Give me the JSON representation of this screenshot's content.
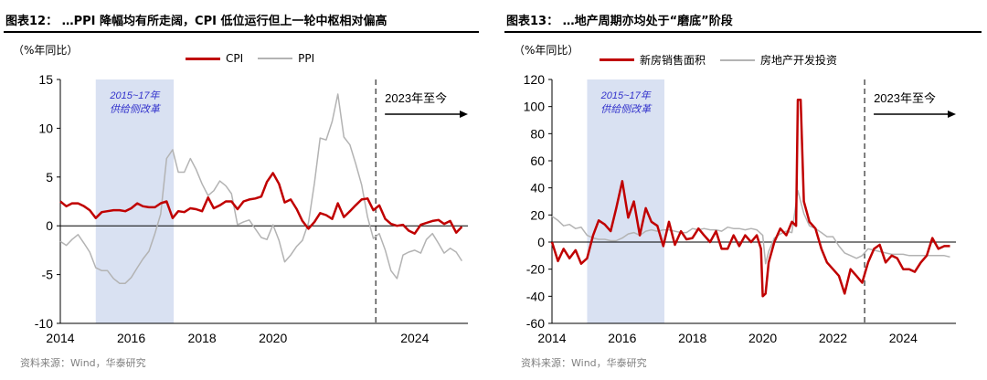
{
  "colors": {
    "primary": "#C00000",
    "secondary": "#B3B3B3",
    "shade": "#D9E1F2",
    "shade_text": "#3333CC",
    "source_text": "#808080"
  },
  "chart_data": [
    {
      "type": "line",
      "fig_title": "图表12：  …PPI 降幅均有所走阔，CPI 低位运行但上一轮中枢相对偏高",
      "unit": "（%年同比）",
      "ylim": [
        -10,
        15
      ],
      "yticks": [
        "15",
        "10",
        "5",
        "0",
        "-5",
        "-10"
      ],
      "xlim": [
        2014,
        2025.5
      ],
      "xtick_values": [
        2014,
        2016,
        2018,
        2020,
        2024
      ],
      "xticks": [
        "2014",
        "2016",
        "2018",
        "2020",
        "2024"
      ],
      "shade": {
        "x0": 2015.0,
        "x1": 2017.2,
        "text1": "2015~17年",
        "text2": "供给侧改革"
      },
      "vline_x": 2022.9,
      "annotation": "2023年至今",
      "series": [
        {
          "name": "CPI",
          "style": "primary",
          "x": [
            2014.0,
            2014.17,
            2014.33,
            2014.5,
            2014.67,
            2014.83,
            2015.0,
            2015.17,
            2015.33,
            2015.5,
            2015.67,
            2015.83,
            2016.0,
            2016.17,
            2016.33,
            2016.5,
            2016.67,
            2016.83,
            2017.0,
            2017.17,
            2017.33,
            2017.5,
            2017.67,
            2017.83,
            2018.0,
            2018.17,
            2018.33,
            2018.5,
            2018.67,
            2018.83,
            2019.0,
            2019.17,
            2019.33,
            2019.5,
            2019.67,
            2019.83,
            2020.0,
            2020.17,
            2020.33,
            2020.5,
            2020.67,
            2020.83,
            2021.0,
            2021.17,
            2021.33,
            2021.5,
            2021.67,
            2021.83,
            2022.0,
            2022.17,
            2022.33,
            2022.5,
            2022.67,
            2022.83,
            2023.0,
            2023.17,
            2023.33,
            2023.5,
            2023.67,
            2023.83,
            2024.0,
            2024.17,
            2024.33,
            2024.5,
            2024.67,
            2024.83,
            2025.0,
            2025.17,
            2025.33
          ],
          "y": [
            2.5,
            2.0,
            2.3,
            2.3,
            2.0,
            1.6,
            0.8,
            1.4,
            1.5,
            1.6,
            1.6,
            1.5,
            1.8,
            2.3,
            2.0,
            1.9,
            1.9,
            2.3,
            2.5,
            0.8,
            1.5,
            1.4,
            1.8,
            1.7,
            1.5,
            2.9,
            1.8,
            2.1,
            2.5,
            2.5,
            1.7,
            2.5,
            2.7,
            2.8,
            3.0,
            4.5,
            5.4,
            4.3,
            2.4,
            2.7,
            1.7,
            0.5,
            -0.3,
            0.4,
            1.3,
            1.1,
            0.7,
            2.3,
            0.9,
            1.5,
            2.1,
            2.7,
            2.8,
            1.6,
            2.1,
            0.7,
            0.2,
            0.0,
            0.1,
            -0.5,
            -0.8,
            0.1,
            0.3,
            0.5,
            0.6,
            0.2,
            0.5,
            -0.7,
            -0.1
          ]
        },
        {
          "name": "PPI",
          "style": "secondary",
          "x": [
            2014.0,
            2014.17,
            2014.33,
            2014.5,
            2014.67,
            2014.83,
            2015.0,
            2015.17,
            2015.33,
            2015.5,
            2015.67,
            2015.83,
            2016.0,
            2016.17,
            2016.33,
            2016.5,
            2016.67,
            2016.83,
            2017.0,
            2017.17,
            2017.33,
            2017.5,
            2017.67,
            2017.83,
            2018.0,
            2018.17,
            2018.33,
            2018.5,
            2018.67,
            2018.83,
            2019.0,
            2019.17,
            2019.33,
            2019.5,
            2019.67,
            2019.83,
            2020.0,
            2020.17,
            2020.33,
            2020.5,
            2020.67,
            2020.83,
            2021.0,
            2021.17,
            2021.33,
            2021.5,
            2021.67,
            2021.83,
            2022.0,
            2022.17,
            2022.33,
            2022.5,
            2022.67,
            2022.83,
            2023.0,
            2023.17,
            2023.33,
            2023.5,
            2023.67,
            2023.83,
            2024.0,
            2024.17,
            2024.33,
            2024.5,
            2024.67,
            2024.83,
            2025.0,
            2025.17,
            2025.33
          ],
          "y": [
            -1.6,
            -2.0,
            -1.4,
            -0.9,
            -1.8,
            -2.7,
            -4.3,
            -4.6,
            -4.6,
            -5.4,
            -5.9,
            -5.9,
            -5.3,
            -4.3,
            -3.4,
            -2.6,
            -0.8,
            1.2,
            6.9,
            7.8,
            5.5,
            5.5,
            6.9,
            5.8,
            4.3,
            3.1,
            3.6,
            4.6,
            4.1,
            3.3,
            0.1,
            0.4,
            0.6,
            -0.3,
            -1.2,
            -1.4,
            0.1,
            -1.5,
            -3.7,
            -3.0,
            -2.1,
            -1.5,
            0.3,
            4.4,
            9.0,
            8.8,
            10.7,
            13.5,
            9.1,
            8.3,
            6.4,
            4.2,
            0.9,
            -1.3,
            -0.8,
            -2.5,
            -4.6,
            -5.4,
            -3.0,
            -2.7,
            -2.5,
            -2.8,
            -1.4,
            -0.8,
            -1.8,
            -2.8,
            -2.3,
            -2.7,
            -3.6
          ]
        }
      ]
    },
    {
      "type": "line",
      "fig_title": "图表13：  …地产周期亦均处于“磨底”阶段",
      "unit": "（%年同比）",
      "ylim": [
        -60,
        120
      ],
      "yticks": [
        "120",
        "100",
        "80",
        "60",
        "40",
        "20",
        "0",
        "-20",
        "-40",
        "-60"
      ],
      "xlim": [
        2014,
        2025.5
      ],
      "xtick_values": [
        2014,
        2016,
        2018,
        2020,
        2022,
        2024
      ],
      "xticks": [
        "2014",
        "2016",
        "2018",
        "2020",
        "2022",
        "2024"
      ],
      "shade": {
        "x0": 2015.0,
        "x1": 2017.2,
        "text1": "2015~17年",
        "text2": "供给侧改革"
      },
      "vline_x": 2022.9,
      "annotation": "2023年至今",
      "series": [
        {
          "name": "新房销售面积",
          "style": "primary",
          "x": [
            2014.0,
            2014.17,
            2014.33,
            2014.5,
            2014.67,
            2014.83,
            2015.0,
            2015.17,
            2015.33,
            2015.5,
            2015.67,
            2015.83,
            2016.0,
            2016.17,
            2016.33,
            2016.5,
            2016.67,
            2016.83,
            2017.0,
            2017.17,
            2017.33,
            2017.5,
            2017.67,
            2017.83,
            2018.0,
            2018.17,
            2018.33,
            2018.5,
            2018.67,
            2018.83,
            2019.0,
            2019.17,
            2019.33,
            2019.5,
            2019.67,
            2019.83,
            2019.95,
            2020.0,
            2020.08,
            2020.17,
            2020.33,
            2020.5,
            2020.67,
            2020.83,
            2020.95,
            2021.0,
            2021.08,
            2021.17,
            2021.33,
            2021.5,
            2021.67,
            2021.83,
            2022.0,
            2022.17,
            2022.33,
            2022.5,
            2022.67,
            2022.83,
            2023.0,
            2023.17,
            2023.33,
            2023.5,
            2023.67,
            2023.83,
            2024.0,
            2024.17,
            2024.33,
            2024.5,
            2024.67,
            2024.83,
            2025.0,
            2025.17,
            2025.33
          ],
          "y": [
            0,
            -14,
            -5,
            -12,
            -6,
            -16,
            -12,
            5,
            16,
            13,
            8,
            25,
            45,
            18,
            30,
            5,
            25,
            15,
            12,
            -3,
            15,
            -2,
            8,
            2,
            3,
            10,
            5,
            0,
            8,
            -5,
            -5,
            5,
            -3,
            5,
            0,
            5,
            -5,
            -40,
            -38,
            -15,
            0,
            10,
            5,
            15,
            12,
            105,
            105,
            30,
            15,
            10,
            -5,
            -15,
            -20,
            -25,
            -38,
            -20,
            -25,
            -30,
            -15,
            -5,
            -2,
            -15,
            -10,
            -12,
            -20,
            -20,
            -22,
            -15,
            -10,
            3,
            -5,
            -3,
            -3
          ]
        },
        {
          "name": "房地产开发投资",
          "style": "secondary",
          "x": [
            2014.0,
            2014.17,
            2014.33,
            2014.5,
            2014.67,
            2014.83,
            2015.0,
            2015.17,
            2015.33,
            2015.5,
            2015.67,
            2015.83,
            2016.0,
            2016.17,
            2016.33,
            2016.5,
            2016.67,
            2016.83,
            2017.0,
            2017.17,
            2017.33,
            2017.5,
            2017.67,
            2017.83,
            2018.0,
            2018.17,
            2018.33,
            2018.5,
            2018.67,
            2018.83,
            2019.0,
            2019.17,
            2019.33,
            2019.5,
            2019.67,
            2019.83,
            2020.0,
            2020.08,
            2020.17,
            2020.33,
            2020.5,
            2020.67,
            2020.83,
            2021.0,
            2021.08,
            2021.17,
            2021.33,
            2021.5,
            2021.67,
            2021.83,
            2022.0,
            2022.17,
            2022.33,
            2022.5,
            2022.67,
            2022.83,
            2023.0,
            2023.17,
            2023.33,
            2023.5,
            2023.67,
            2023.83,
            2024.0,
            2024.17,
            2024.33,
            2024.5,
            2024.67,
            2024.83,
            2025.0,
            2025.17,
            2025.33
          ],
          "y": [
            19,
            16,
            12,
            13,
            10,
            11,
            5,
            3,
            2,
            2,
            1,
            1,
            3,
            6,
            7,
            5,
            8,
            9,
            8,
            9,
            9,
            8,
            7,
            7,
            10,
            9,
            10,
            9,
            9,
            8,
            11,
            10,
            10,
            9,
            10,
            9,
            5,
            -16,
            -7,
            3,
            6,
            8,
            7,
            38,
            30,
            21,
            12,
            10,
            7,
            4,
            4,
            -3,
            -8,
            -10,
            -12,
            -10,
            -5,
            -6,
            -7,
            -8,
            -9,
            -9,
            -9,
            -10,
            -10,
            -10,
            -10,
            -10,
            -10,
            -10,
            -11
          ]
        }
      ]
    }
  ],
  "source_text": "资料来源：Wind，华泰研究"
}
